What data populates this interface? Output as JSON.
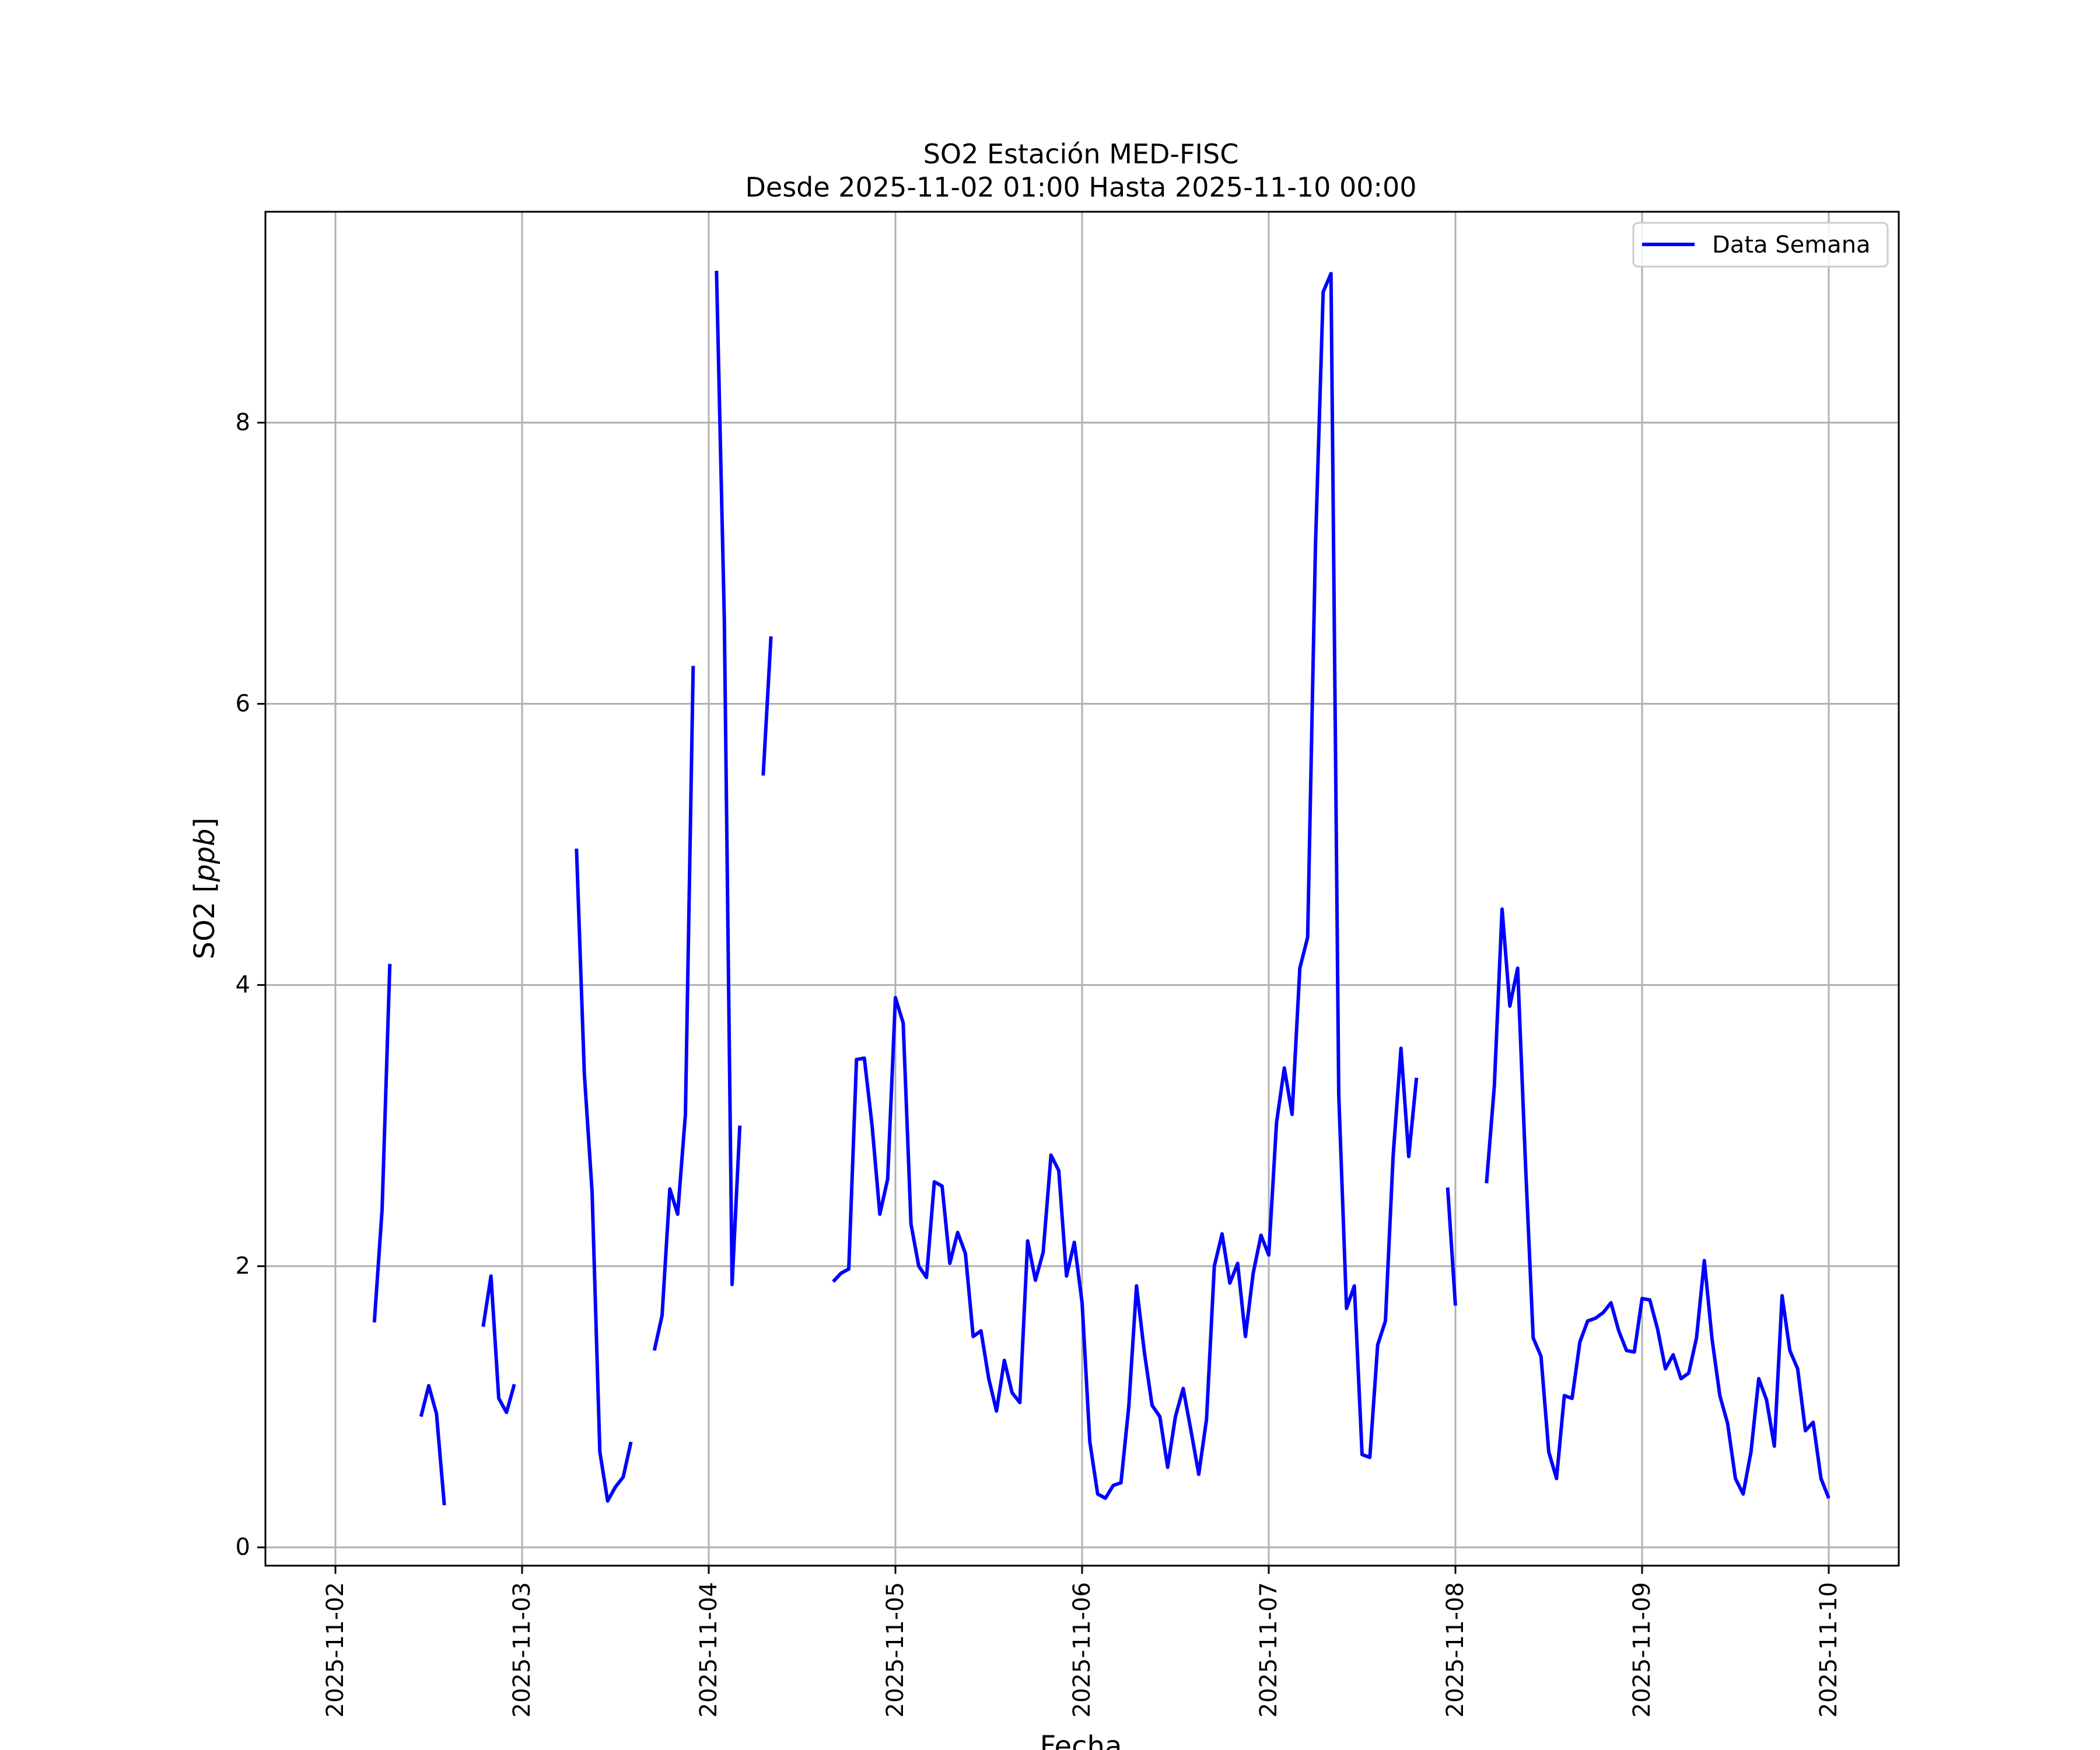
{
  "chart_data": {
    "type": "line",
    "title": "SO2 Estación MED-FISC",
    "subtitle": "Desde 2025-11-02 01:00 Hasta 2025-11-10 00:00",
    "xlabel": "Fecha",
    "ylabel": "SO2 [ppb]",
    "ylabel_prefix": "SO2 [",
    "ylabel_unit": "ppb",
    "ylabel_suffix": "]",
    "xlim": [
      "2025-11-01T15:00",
      "2025-11-10T09:00"
    ],
    "ylim": [
      -0.13,
      9.5
    ],
    "x_ticks": [
      "2025-11-02",
      "2025-11-03",
      "2025-11-04",
      "2025-11-05",
      "2025-11-06",
      "2025-11-07",
      "2025-11-08",
      "2025-11-09",
      "2025-11-10"
    ],
    "y_ticks": [
      0,
      2,
      4,
      6,
      8
    ],
    "grid": true,
    "legend_position": "top-right",
    "series": [
      {
        "name": "Data Semana",
        "color": "#0000ff",
        "segments": [
          [
            [
              "2025-11-02T05:00",
              1.6
            ],
            [
              "2025-11-02T06:00",
              2.4
            ],
            [
              "2025-11-02T07:00",
              4.15
            ]
          ],
          [
            [
              "2025-11-02T11:00",
              0.93
            ],
            [
              "2025-11-02T12:00",
              1.15
            ],
            [
              "2025-11-02T13:00",
              0.95
            ],
            [
              "2025-11-02T14:00",
              0.3
            ]
          ],
          [
            [
              "2025-11-02T19:00",
              1.57
            ],
            [
              "2025-11-02T20:00",
              1.93
            ],
            [
              "2025-11-02T21:00",
              1.06
            ],
            [
              "2025-11-02T22:00",
              0.96
            ],
            [
              "2025-11-02T23:00",
              1.16
            ]
          ],
          [
            [
              "2025-11-03T07:00",
              4.97
            ],
            [
              "2025-11-03T08:00",
              3.37
            ],
            [
              "2025-11-03T09:00",
              2.53
            ],
            [
              "2025-11-03T10:00",
              0.68
            ],
            [
              "2025-11-03T11:00",
              0.33
            ],
            [
              "2025-11-03T12:00",
              0.43
            ],
            [
              "2025-11-03T13:00",
              0.5
            ],
            [
              "2025-11-03T14:00",
              0.75
            ]
          ],
          [
            [
              "2025-11-03T17:00",
              1.4
            ],
            [
              "2025-11-03T18:00",
              1.65
            ],
            [
              "2025-11-03T19:00",
              2.55
            ],
            [
              "2025-11-03T20:00",
              2.37
            ],
            [
              "2025-11-03T21:00",
              3.08
            ],
            [
              "2025-11-03T22:00",
              6.27
            ]
          ],
          [
            [
              "2025-11-04T01:00",
              9.08
            ],
            [
              "2025-11-04T02:00",
              6.6
            ],
            [
              "2025-11-04T03:00",
              1.87
            ],
            [
              "2025-11-04T04:00",
              3.0
            ]
          ],
          [
            [
              "2025-11-04T07:00",
              5.49
            ],
            [
              "2025-11-04T08:00",
              6.48
            ]
          ],
          [
            [
              "2025-11-04T16:00",
              1.89
            ],
            [
              "2025-11-04T17:00",
              1.95
            ],
            [
              "2025-11-04T18:00",
              1.98
            ],
            [
              "2025-11-04T19:00",
              3.47
            ],
            [
              "2025-11-04T20:00",
              3.48
            ],
            [
              "2025-11-04T21:00",
              3.0
            ],
            [
              "2025-11-04T22:00",
              2.37
            ],
            [
              "2025-11-04T23:00",
              2.62
            ],
            [
              "2025-11-05T00:00",
              3.91
            ],
            [
              "2025-11-05T01:00",
              3.73
            ],
            [
              "2025-11-05T02:00",
              2.3
            ],
            [
              "2025-11-05T03:00",
              2.0
            ],
            [
              "2025-11-05T04:00",
              1.92
            ],
            [
              "2025-11-05T05:00",
              2.6
            ],
            [
              "2025-11-05T06:00",
              2.57
            ],
            [
              "2025-11-05T07:00",
              2.02
            ],
            [
              "2025-11-05T08:00",
              2.24
            ],
            [
              "2025-11-05T09:00",
              2.09
            ],
            [
              "2025-11-05T10:00",
              1.5
            ],
            [
              "2025-11-05T11:00",
              1.54
            ],
            [
              "2025-11-05T12:00",
              1.2
            ],
            [
              "2025-11-05T13:00",
              0.97
            ],
            [
              "2025-11-05T14:00",
              1.33
            ],
            [
              "2025-11-05T15:00",
              1.1
            ],
            [
              "2025-11-05T16:00",
              1.03
            ],
            [
              "2025-11-05T17:00",
              2.18
            ],
            [
              "2025-11-05T18:00",
              1.9
            ],
            [
              "2025-11-05T19:00",
              2.1
            ],
            [
              "2025-11-05T20:00",
              2.79
            ],
            [
              "2025-11-05T21:00",
              2.68
            ],
            [
              "2025-11-05T22:00",
              1.93
            ],
            [
              "2025-11-05T23:00",
              2.17
            ],
            [
              "2025-11-06T00:00",
              1.74
            ],
            [
              "2025-11-06T01:00",
              0.75
            ],
            [
              "2025-11-06T02:00",
              0.38
            ],
            [
              "2025-11-06T03:00",
              0.35
            ],
            [
              "2025-11-06T04:00",
              0.44
            ],
            [
              "2025-11-06T05:00",
              0.46
            ],
            [
              "2025-11-06T06:00",
              1.0
            ],
            [
              "2025-11-06T07:00",
              1.86
            ],
            [
              "2025-11-06T08:00",
              1.39
            ],
            [
              "2025-11-06T09:00",
              1.01
            ],
            [
              "2025-11-06T10:00",
              0.93
            ],
            [
              "2025-11-06T11:00",
              0.57
            ],
            [
              "2025-11-06T12:00",
              0.93
            ],
            [
              "2025-11-06T13:00",
              1.13
            ],
            [
              "2025-11-06T14:00",
              0.83
            ],
            [
              "2025-11-06T15:00",
              0.52
            ],
            [
              "2025-11-06T16:00",
              0.91
            ],
            [
              "2025-11-06T17:00",
              2.0
            ],
            [
              "2025-11-06T18:00",
              2.23
            ],
            [
              "2025-11-06T19:00",
              1.88
            ],
            [
              "2025-11-06T20:00",
              2.02
            ],
            [
              "2025-11-06T21:00",
              1.5
            ],
            [
              "2025-11-06T22:00",
              1.95
            ],
            [
              "2025-11-06T23:00",
              2.22
            ],
            [
              "2025-11-07T00:00",
              2.08
            ],
            [
              "2025-11-07T01:00",
              3.02
            ],
            [
              "2025-11-07T02:00",
              3.41
            ],
            [
              "2025-11-07T03:00",
              3.08
            ],
            [
              "2025-11-07T04:00",
              4.12
            ],
            [
              "2025-11-07T05:00",
              4.34
            ],
            [
              "2025-11-07T06:00",
              7.11
            ],
            [
              "2025-11-07T07:00",
              8.93
            ],
            [
              "2025-11-07T08:00",
              9.06
            ],
            [
              "2025-11-07T09:00",
              3.22
            ],
            [
              "2025-11-07T10:00",
              1.7
            ],
            [
              "2025-11-07T11:00",
              1.86
            ],
            [
              "2025-11-07T12:00",
              0.66
            ],
            [
              "2025-11-07T13:00",
              0.64
            ],
            [
              "2025-11-07T14:00",
              1.44
            ],
            [
              "2025-11-07T15:00",
              1.61
            ],
            [
              "2025-11-07T16:00",
              2.79
            ],
            [
              "2025-11-07T17:00",
              3.55
            ],
            [
              "2025-11-07T18:00",
              2.78
            ],
            [
              "2025-11-07T19:00",
              3.34
            ]
          ],
          [
            [
              "2025-11-07T23:00",
              2.56
            ],
            [
              "2025-11-08T00:00",
              1.72
            ]
          ],
          [
            [
              "2025-11-08T04:00",
              2.59
            ],
            [
              "2025-11-08T05:00",
              3.28
            ],
            [
              "2025-11-08T06:00",
              4.54
            ],
            [
              "2025-11-08T07:00",
              3.85
            ],
            [
              "2025-11-08T08:00",
              4.12
            ],
            [
              "2025-11-08T09:00",
              2.74
            ],
            [
              "2025-11-08T10:00",
              1.49
            ],
            [
              "2025-11-08T11:00",
              1.36
            ],
            [
              "2025-11-08T12:00",
              0.68
            ],
            [
              "2025-11-08T13:00",
              0.49
            ],
            [
              "2025-11-08T14:00",
              1.08
            ],
            [
              "2025-11-08T15:00",
              1.06
            ],
            [
              "2025-11-08T16:00",
              1.46
            ],
            [
              "2025-11-08T17:00",
              1.61
            ],
            [
              "2025-11-08T18:00",
              1.63
            ],
            [
              "2025-11-08T19:00",
              1.67
            ],
            [
              "2025-11-08T20:00",
              1.74
            ],
            [
              "2025-11-08T21:00",
              1.54
            ],
            [
              "2025-11-08T22:00",
              1.4
            ],
            [
              "2025-11-08T23:00",
              1.39
            ],
            [
              "2025-11-09T00:00",
              1.77
            ],
            [
              "2025-11-09T01:00",
              1.76
            ],
            [
              "2025-11-09T02:00",
              1.55
            ],
            [
              "2025-11-09T03:00",
              1.27
            ],
            [
              "2025-11-09T04:00",
              1.37
            ],
            [
              "2025-11-09T05:00",
              1.2
            ],
            [
              "2025-11-09T06:00",
              1.24
            ],
            [
              "2025-11-09T07:00",
              1.49
            ],
            [
              "2025-11-09T08:00",
              2.04
            ],
            [
              "2025-11-09T09:00",
              1.48
            ],
            [
              "2025-11-09T10:00",
              1.08
            ],
            [
              "2025-11-09T11:00",
              0.88
            ],
            [
              "2025-11-09T12:00",
              0.49
            ],
            [
              "2025-11-09T13:00",
              0.38
            ],
            [
              "2025-11-09T14:00",
              0.68
            ],
            [
              "2025-11-09T15:00",
              1.2
            ],
            [
              "2025-11-09T16:00",
              1.05
            ],
            [
              "2025-11-09T17:00",
              0.72
            ],
            [
              "2025-11-09T18:00",
              1.79
            ],
            [
              "2025-11-09T19:00",
              1.4
            ],
            [
              "2025-11-09T20:00",
              1.27
            ],
            [
              "2025-11-09T21:00",
              0.83
            ],
            [
              "2025-11-09T22:00",
              0.89
            ],
            [
              "2025-11-09T23:00",
              0.49
            ],
            [
              "2025-11-10T00:00",
              0.35
            ]
          ]
        ]
      }
    ]
  }
}
